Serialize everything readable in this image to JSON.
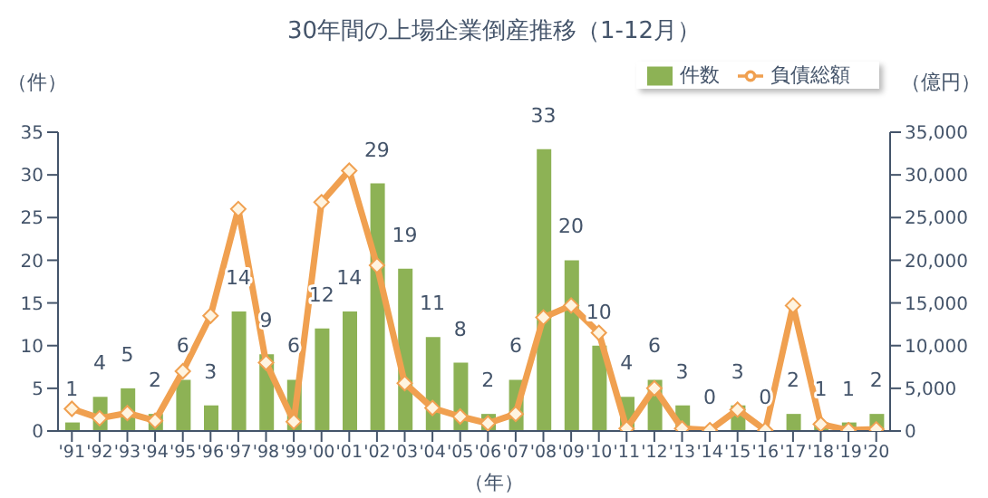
{
  "chart_data": {
    "type": "bar",
    "title": "30年間の上場企業倒産推移（1-12月）",
    "xlabel": "（年）",
    "ylabel": "（件）",
    "y2label": "（億円）",
    "categories": [
      "'91",
      "'92",
      "'93",
      "'94",
      "'95",
      "'96",
      "'97",
      "'98",
      "'99",
      "'00",
      "'01",
      "'02",
      "'03",
      "'04",
      "'05",
      "'06",
      "'07",
      "'08",
      "'09",
      "'10",
      "'11",
      "'12",
      "'13",
      "'14",
      "'15",
      "'16",
      "'17",
      "'18",
      "'19",
      "'20"
    ],
    "series": [
      {
        "name": "件数",
        "color": "#8db255",
        "values": [
          1,
          4,
          5,
          2,
          6,
          3,
          14,
          9,
          6,
          12,
          14,
          29,
          19,
          11,
          8,
          2,
          6,
          33,
          20,
          10,
          4,
          6,
          3,
          0,
          3,
          0,
          2,
          1,
          1,
          2
        ],
        "value_labels": [
          "1",
          "4",
          "5",
          "2",
          "6",
          "3",
          "14",
          "9",
          "6",
          "12",
          "14",
          "29",
          "19",
          "11",
          "8",
          "2",
          "6",
          "33",
          "20",
          "10",
          "4",
          "6",
          "3",
          "0",
          "3",
          "0",
          "2",
          "1",
          "1",
          "2"
        ]
      },
      {
        "name": "負債総額",
        "type": "line",
        "axis": "y2",
        "color": "#f0a050",
        "marker": "diamond",
        "values": [
          2600,
          1500,
          2100,
          1200,
          7000,
          13500,
          26000,
          8000,
          1100,
          26800,
          30500,
          19400,
          5600,
          2700,
          1700,
          900,
          2000,
          13300,
          14700,
          11500,
          300,
          5000,
          300,
          100,
          2500,
          100,
          14700,
          800,
          100,
          200
        ]
      }
    ],
    "ylim": [
      0,
      35
    ],
    "yticks": [
      0,
      5,
      10,
      15,
      20,
      25,
      30,
      35
    ],
    "y2lim": [
      0,
      35000
    ],
    "y2ticks": [
      {
        "value": 0,
        "label": "0"
      },
      {
        "value": 5000,
        "label": "5,000"
      },
      {
        "value": 10000,
        "label": "10,000"
      },
      {
        "value": 15000,
        "label": "15,000"
      },
      {
        "value": 20000,
        "label": "20,000"
      },
      {
        "value": 25000,
        "label": "25,000"
      },
      {
        "value": 30000,
        "label": "30,000"
      },
      {
        "value": 35000,
        "label": "35,000"
      }
    ],
    "legend": "top right",
    "grid": false
  }
}
